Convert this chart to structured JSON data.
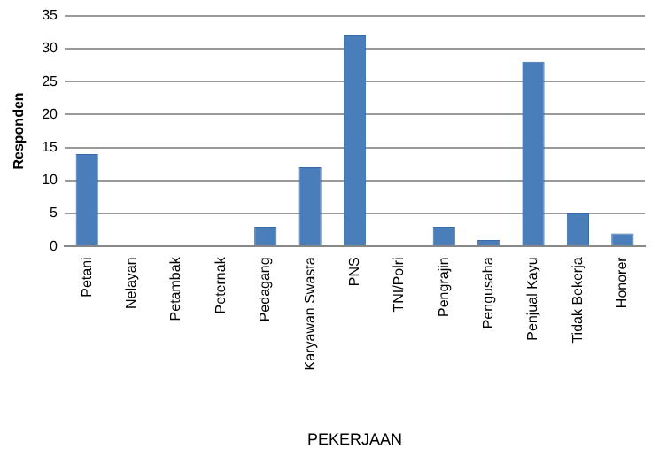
{
  "chart_data": {
    "type": "bar",
    "xlabel": "PEKERJAAN",
    "ylabel": "Responden",
    "categories": [
      "Petani",
      "Nelayan",
      "Petambak",
      "Peternak",
      "Pedagang",
      "Karyawan Swasta",
      "PNS",
      "TNI/Polri",
      "Pengrajin",
      "Pengusaha",
      "Penjual Kayu",
      "Tidak Bekerja",
      "Honorer"
    ],
    "values": [
      14,
      0,
      0,
      0,
      3,
      12,
      32,
      0,
      3,
      1,
      28,
      5,
      2
    ],
    "color": "#4a7ebb",
    "ylim": [
      0,
      35
    ],
    "yticks": [
      0,
      5,
      10,
      15,
      20,
      25,
      30,
      35
    ],
    "grid": "y",
    "legend": false
  }
}
